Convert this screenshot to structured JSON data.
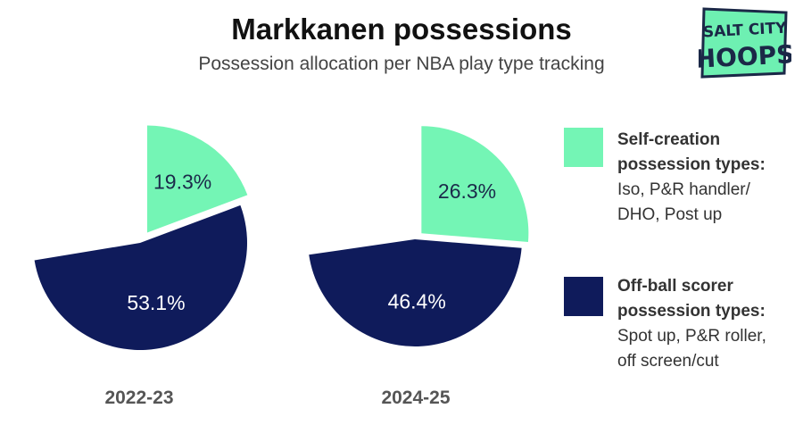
{
  "title": "Markkanen possessions",
  "subtitle": "Possession allocation per NBA play type tracking",
  "logo": {
    "line1": "SALT CITY",
    "line2": "HOOPS"
  },
  "colors": {
    "self_creation": "#74F5B5",
    "off_ball": "#0F1B5B",
    "logo_bg": "#6EF0B2",
    "logo_text": "#1B2847"
  },
  "legend": [
    {
      "bold1": "Self-creation",
      "bold2": "possession types:",
      "desc1": "Iso, P&R handler/",
      "desc2": "DHO, Post up"
    },
    {
      "bold1": "Off-ball scorer",
      "bold2": "possession types:",
      "desc1": "Spot up, P&R roller,",
      "desc2": "off screen/cut"
    }
  ],
  "chart_data": {
    "type": "pie",
    "categories": [
      "Self-creation possession types",
      "Off-ball scorer possession types"
    ],
    "charts": [
      {
        "year": "2022-23",
        "values": [
          19.3,
          53.1
        ],
        "labels": [
          "19.3%",
          "53.1%"
        ]
      },
      {
        "year": "2024-25",
        "values": [
          26.3,
          46.4
        ],
        "labels": [
          "26.3%",
          "46.4%"
        ]
      }
    ]
  }
}
